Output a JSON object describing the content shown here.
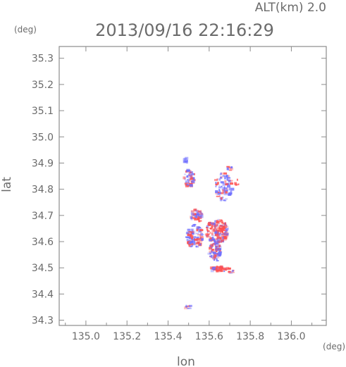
{
  "header": {
    "altitude": "ALT(km) 2.0",
    "timestamp": "2013/09/16 22:16:29"
  },
  "chart_data": {
    "type": "heatmap",
    "title": "2013/09/16 22:16:29",
    "subtitle": "ALT(km) 2.0",
    "xlabel": "lon",
    "ylabel": "lat",
    "x_unit": "(deg)",
    "y_unit": "(deg)",
    "xlim": [
      134.87,
      136.17
    ],
    "ylim": [
      34.28,
      35.345
    ],
    "x_ticks": [
      135.0,
      135.2,
      135.4,
      135.6,
      135.8,
      136.0
    ],
    "x_tick_labels": [
      "135.0",
      "135.2",
      "135.4",
      "135.6",
      "135.8",
      "136.0"
    ],
    "y_ticks": [
      34.3,
      34.4,
      34.5,
      34.6,
      34.7,
      34.8,
      34.9,
      35.0,
      35.1,
      35.2,
      35.3
    ],
    "y_tick_labels": [
      "34.3",
      "34.4",
      "34.5",
      "34.6",
      "34.7",
      "34.8",
      "34.9",
      "35.0",
      "35.1",
      "35.2",
      "35.3"
    ],
    "grid": false,
    "colors": {
      "positive": "#ff4f4f",
      "negative": "#6f6fff",
      "frame": "#8c8c8c",
      "text": "#6b6b6b"
    },
    "clusters": [
      {
        "lon": 135.485,
        "lat": 34.91,
        "r_lon": 0.012,
        "r_lat": 0.01,
        "n": 10,
        "bias": -0.9
      },
      {
        "lon": 135.505,
        "lat": 34.84,
        "r_lon": 0.028,
        "r_lat": 0.035,
        "n": 55,
        "bias": 0.0
      },
      {
        "lon": 135.67,
        "lat": 34.81,
        "r_lon": 0.045,
        "r_lat": 0.055,
        "n": 90,
        "bias": -0.3
      },
      {
        "lon": 135.7,
        "lat": 34.88,
        "r_lon": 0.012,
        "r_lat": 0.012,
        "n": 8,
        "bias": -0.5
      },
      {
        "lon": 135.735,
        "lat": 34.825,
        "r_lon": 0.01,
        "r_lat": 0.012,
        "n": 6,
        "bias": 0.9
      },
      {
        "lon": 135.54,
        "lat": 34.7,
        "r_lon": 0.03,
        "r_lat": 0.025,
        "n": 60,
        "bias": 0.3
      },
      {
        "lon": 135.64,
        "lat": 34.64,
        "r_lon": 0.055,
        "r_lat": 0.045,
        "n": 180,
        "bias": 0.35
      },
      {
        "lon": 135.53,
        "lat": 34.62,
        "r_lon": 0.04,
        "r_lat": 0.045,
        "n": 110,
        "bias": -0.35
      },
      {
        "lon": 135.63,
        "lat": 34.56,
        "r_lon": 0.03,
        "r_lat": 0.035,
        "n": 80,
        "bias": -0.2
      },
      {
        "lon": 135.65,
        "lat": 34.495,
        "r_lon": 0.045,
        "r_lat": 0.01,
        "n": 60,
        "bias": 0.8
      },
      {
        "lon": 135.705,
        "lat": 34.49,
        "r_lon": 0.015,
        "r_lat": 0.01,
        "n": 10,
        "bias": 0.6
      },
      {
        "lon": 135.5,
        "lat": 34.35,
        "r_lon": 0.018,
        "r_lat": 0.006,
        "n": 10,
        "bias": -0.6
      }
    ]
  }
}
